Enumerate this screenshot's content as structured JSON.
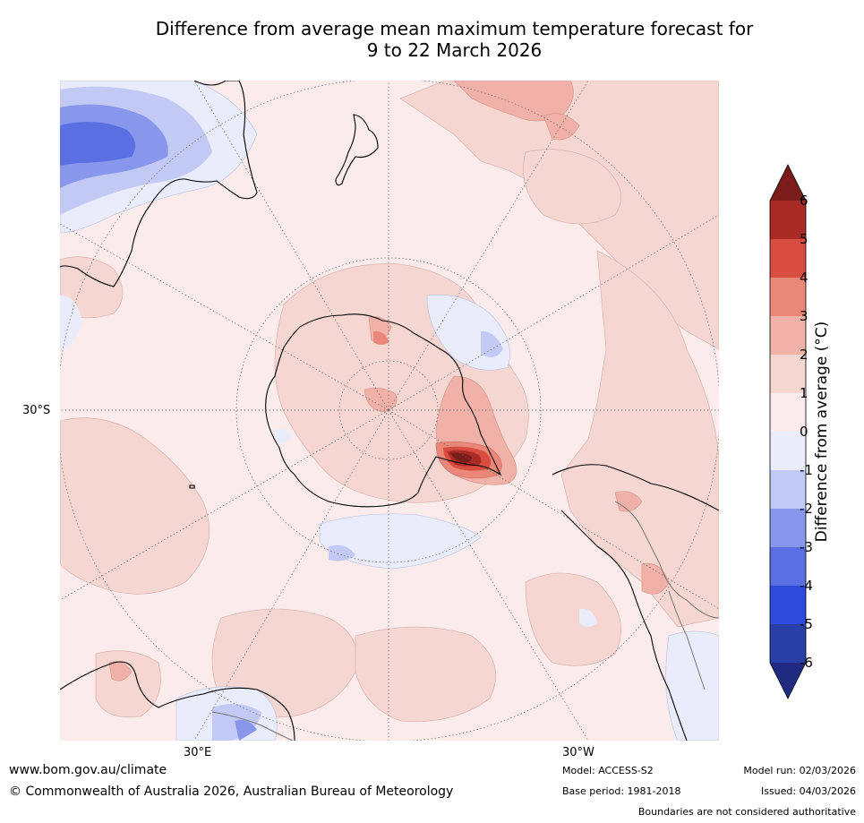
{
  "title": {
    "line1": "Difference from average mean maximum temperature forecast for",
    "line2": "9 to 22 March 2026"
  },
  "map": {
    "projection": "south-polar-stereographic",
    "lat_label": "30°S",
    "lon_labels": [
      "30°E",
      "30°W"
    ],
    "grid_style": "dotted"
  },
  "colorbar": {
    "title": "Difference from average (°C)",
    "ticks": [
      "6",
      "5",
      "4",
      "3",
      "2",
      "1",
      "0",
      "-1",
      "-2",
      "-3",
      "-4",
      "-5",
      "-6"
    ],
    "levels": [
      {
        "range": ">6",
        "color": "#7a1d18"
      },
      {
        "range": "5 to 6",
        "color": "#aa2b25"
      },
      {
        "range": "4 to 5",
        "color": "#d94d41"
      },
      {
        "range": "3 to 4",
        "color": "#e98878"
      },
      {
        "range": "2 to 3",
        "color": "#f0b1a8"
      },
      {
        "range": "1 to 2",
        "color": "#f5d6d1"
      },
      {
        "range": "0 to 1",
        "color": "#fbeceb"
      },
      {
        "range": "-1 to 0",
        "color": "#e9ecfb"
      },
      {
        "range": "-2 to -1",
        "color": "#c2c9f4"
      },
      {
        "range": "-3 to -2",
        "color": "#8896ec"
      },
      {
        "range": "-4 to -3",
        "color": "#5a6fe2"
      },
      {
        "range": "-5 to -4",
        "color": "#2f4bde"
      },
      {
        "range": "-6 to -5",
        "color": "#2a3ea8"
      },
      {
        "range": "<-6",
        "color": "#1f2a80"
      }
    ]
  },
  "footer": {
    "website": "www.bom.gov.au/climate",
    "copyright": "© Commonwealth of Australia 2026, Australian Bureau of Meteorology",
    "model": "Model: ACCESS-S2",
    "base_period": "Base period: 1981-2018",
    "model_run": "Model run: 02/03/2026",
    "issued": "Issued: 04/03/2026",
    "disclaimer": "Boundaries are not considered authoritative"
  }
}
